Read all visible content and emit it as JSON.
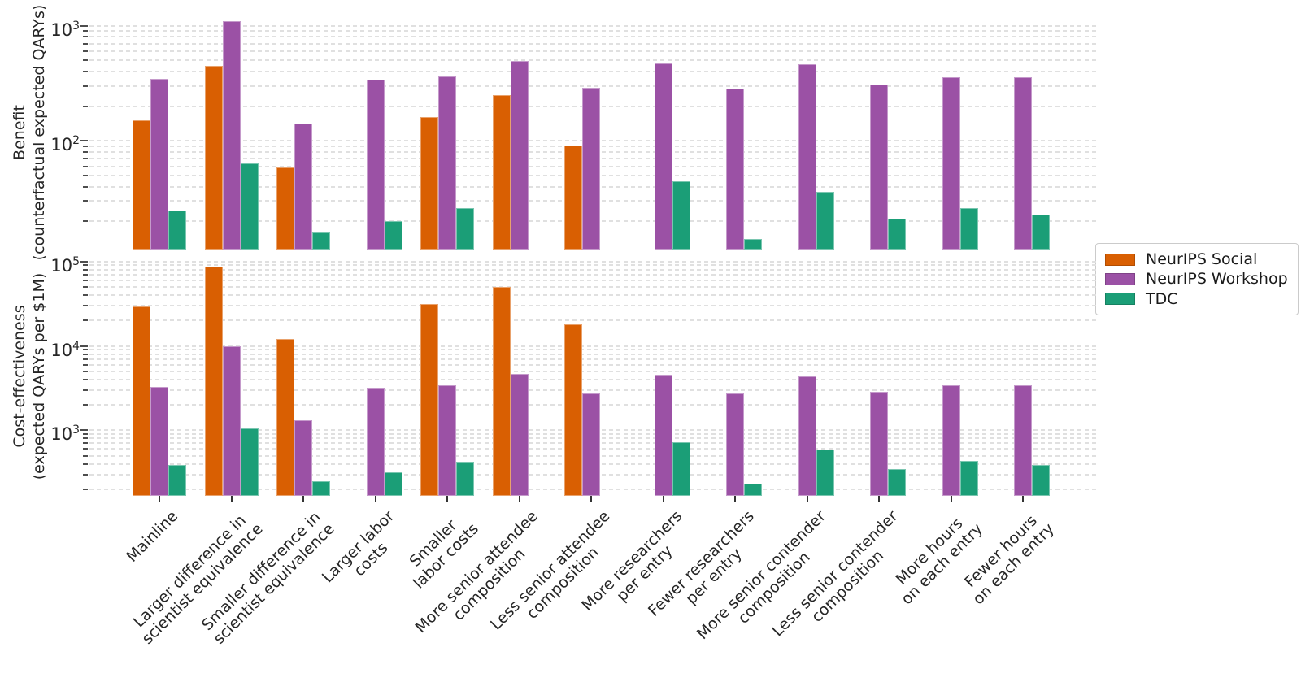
{
  "figure": {
    "background": "#ffffff",
    "axis_text_color": "#262626"
  },
  "legend": {
    "position": "right",
    "entries": [
      {
        "label": "NeurIPS Social",
        "color": "#d95f02"
      },
      {
        "label": "NeurIPS Workshop",
        "color": "#9b51a5"
      },
      {
        "label": "TDC",
        "color": "#1b9e77"
      }
    ]
  },
  "chart_data": {
    "type": "bar",
    "log_scale": true,
    "grid": "dashed horizontal, major and minor log ticks",
    "legend_position": "right",
    "xlabel": "",
    "categories": [
      "Mainline",
      "Larger difference in\nscientist equivalence",
      "Smaller difference in\nscientist equivalence",
      "Larger labor\ncosts",
      "Smaller\nlabor costs",
      "More senior attendee\ncomposition",
      "Less senior attendee\ncomposition",
      "More researchers\nper entry",
      "Fewer researchers\nper entry",
      "More senior contender\ncomposition",
      "Less senior contender\ncomposition",
      "More hours\non each entry",
      "Fewer hours\non each entry"
    ],
    "series_names": [
      "NeurIPS Social",
      "NeurIPS Workshop",
      "TDC"
    ],
    "series_colors": [
      "#d95f02",
      "#9b51a5",
      "#1b9e77"
    ],
    "subplots": [
      {
        "name": "benefit",
        "ylabel": "Benefit\n(counterfactual expected QARYs)",
        "ylim": [
          11.4,
          1250
        ],
        "ytick_exponents": [
          2,
          3
        ],
        "series": [
          {
            "name": "NeurIPS Social",
            "values": [
              150,
              450,
              59,
              null,
              161,
              251,
              92,
              null,
              null,
              null,
              null,
              null,
              null
            ]
          },
          {
            "name": "NeurIPS Workshop",
            "values": [
              346,
              1090,
              141,
              342,
              363,
              492,
              290,
              475,
              284,
              462,
              307,
              356,
              356
            ]
          },
          {
            "name": "TDC",
            "values": [
              25,
              64,
              16,
              20,
              26,
              null,
              null,
              45,
              14,
              36,
              21,
              26,
              23
            ]
          }
        ]
      },
      {
        "name": "cost-effectiveness",
        "ylabel": "Cost-effectiveness\n(expected QARYs per $1M)",
        "ylim": [
          167,
          116000
        ],
        "ytick_exponents": [
          3,
          4,
          5
        ],
        "series": [
          {
            "name": "NeurIPS Social",
            "values": [
              29000,
              86000,
              12000,
              null,
              31300,
              49600,
              17900,
              null,
              null,
              null,
              null,
              null,
              null
            ]
          },
          {
            "name": "NeurIPS Workshop",
            "values": [
              3280,
              9800,
              1300,
              3190,
              3430,
              4620,
              2750,
              4550,
              2710,
              4320,
              2870,
              3400,
              3400
            ]
          },
          {
            "name": "TDC",
            "values": [
              390,
              1050,
              250,
              320,
              427,
              null,
              null,
              716,
              231,
              586,
              348,
              434,
              384
            ]
          }
        ]
      }
    ]
  }
}
